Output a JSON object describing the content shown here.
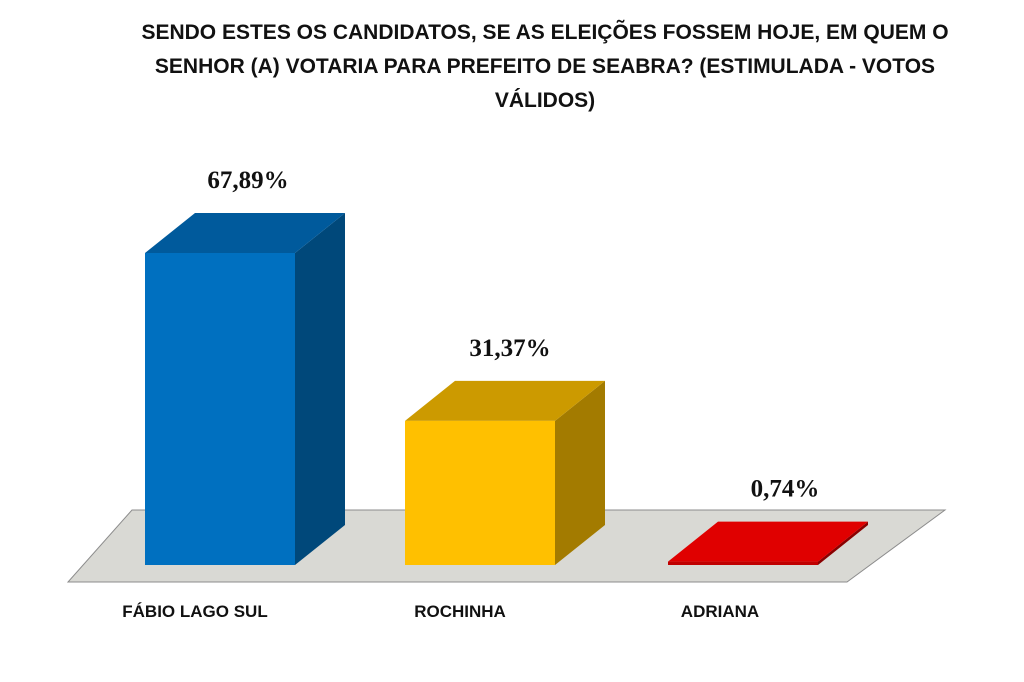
{
  "chart_data": {
    "type": "bar",
    "title": "SENDO ESTES OS  CANDIDATOS, SE AS ELEIÇÕES FOSSEM HOJE, EM QUEM O SENHOR (A) VOTARIA PARA PREFEITO DE SEABRA? (ESTIMULADA - VOTOS VÁLIDOS)",
    "categories": [
      "FÁBIO LAGO SUL",
      "ROCHINHA",
      "ADRIANA"
    ],
    "values": [
      67.89,
      31.37,
      0.74
    ],
    "value_labels": [
      "67,89%",
      "31,37%",
      "0,74%"
    ],
    "colors": [
      "#0070c0",
      "#ffc000",
      "#c00000"
    ],
    "side_colors": [
      "#00487a",
      "#a37b00",
      "#8a0000"
    ],
    "top_colors": [
      "#005a9c",
      "#cc9a00",
      "#e00000"
    ],
    "floor_color": "#d9d9d4",
    "grid": false,
    "legend": "none",
    "style": "3d"
  }
}
